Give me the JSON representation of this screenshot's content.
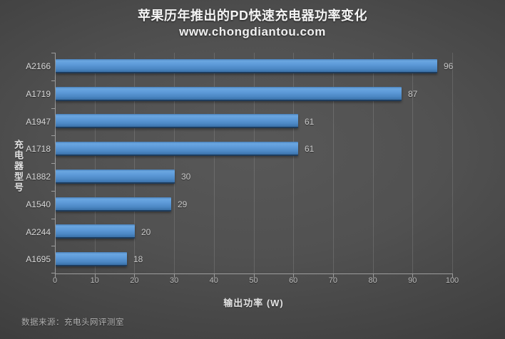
{
  "header": {
    "title": "苹果历年推出的PD快速充电器功率变化",
    "subtitle": "www.chongdiantou.com"
  },
  "chart_data": {
    "type": "bar",
    "orientation": "horizontal",
    "title": "苹果历年推出的PD快速充电器功率变化",
    "subtitle": "www.chongdiantou.com",
    "categories": [
      "A2166",
      "A1719",
      "A1947",
      "A1718",
      "A1882",
      "A1540",
      "A2244",
      "A1695"
    ],
    "values": [
      96,
      87,
      61,
      61,
      30,
      29,
      20,
      18
    ],
    "xlabel": "输出功率 (W)",
    "ylabel": "充电器型号",
    "xlim": [
      0,
      100
    ],
    "xticks": [
      0,
      10,
      20,
      30,
      40,
      50,
      60,
      70,
      80,
      90,
      100
    ],
    "grid": "vertical",
    "legend": "none",
    "bar_color": "#5694d3"
  },
  "footer": {
    "source": "数据来源：充电头网评测室"
  },
  "colors": {
    "background_center": "#585858",
    "background_edge": "#232323",
    "bar_top": "#6aa6e1",
    "bar_mid": "#5d9ad8",
    "bar_bottom": "#3a71a8",
    "bar_edge": "#1e3c5c",
    "axis_line": "#9d9d9d",
    "gridline": "rgba(255,255,255,0.13)",
    "title_text": "#f4f4f4",
    "label_text": "#d9d9d9",
    "value_text": "#c9c9c9",
    "tick_text": "#bcbcbc",
    "source_text": "#b3b3b3"
  }
}
